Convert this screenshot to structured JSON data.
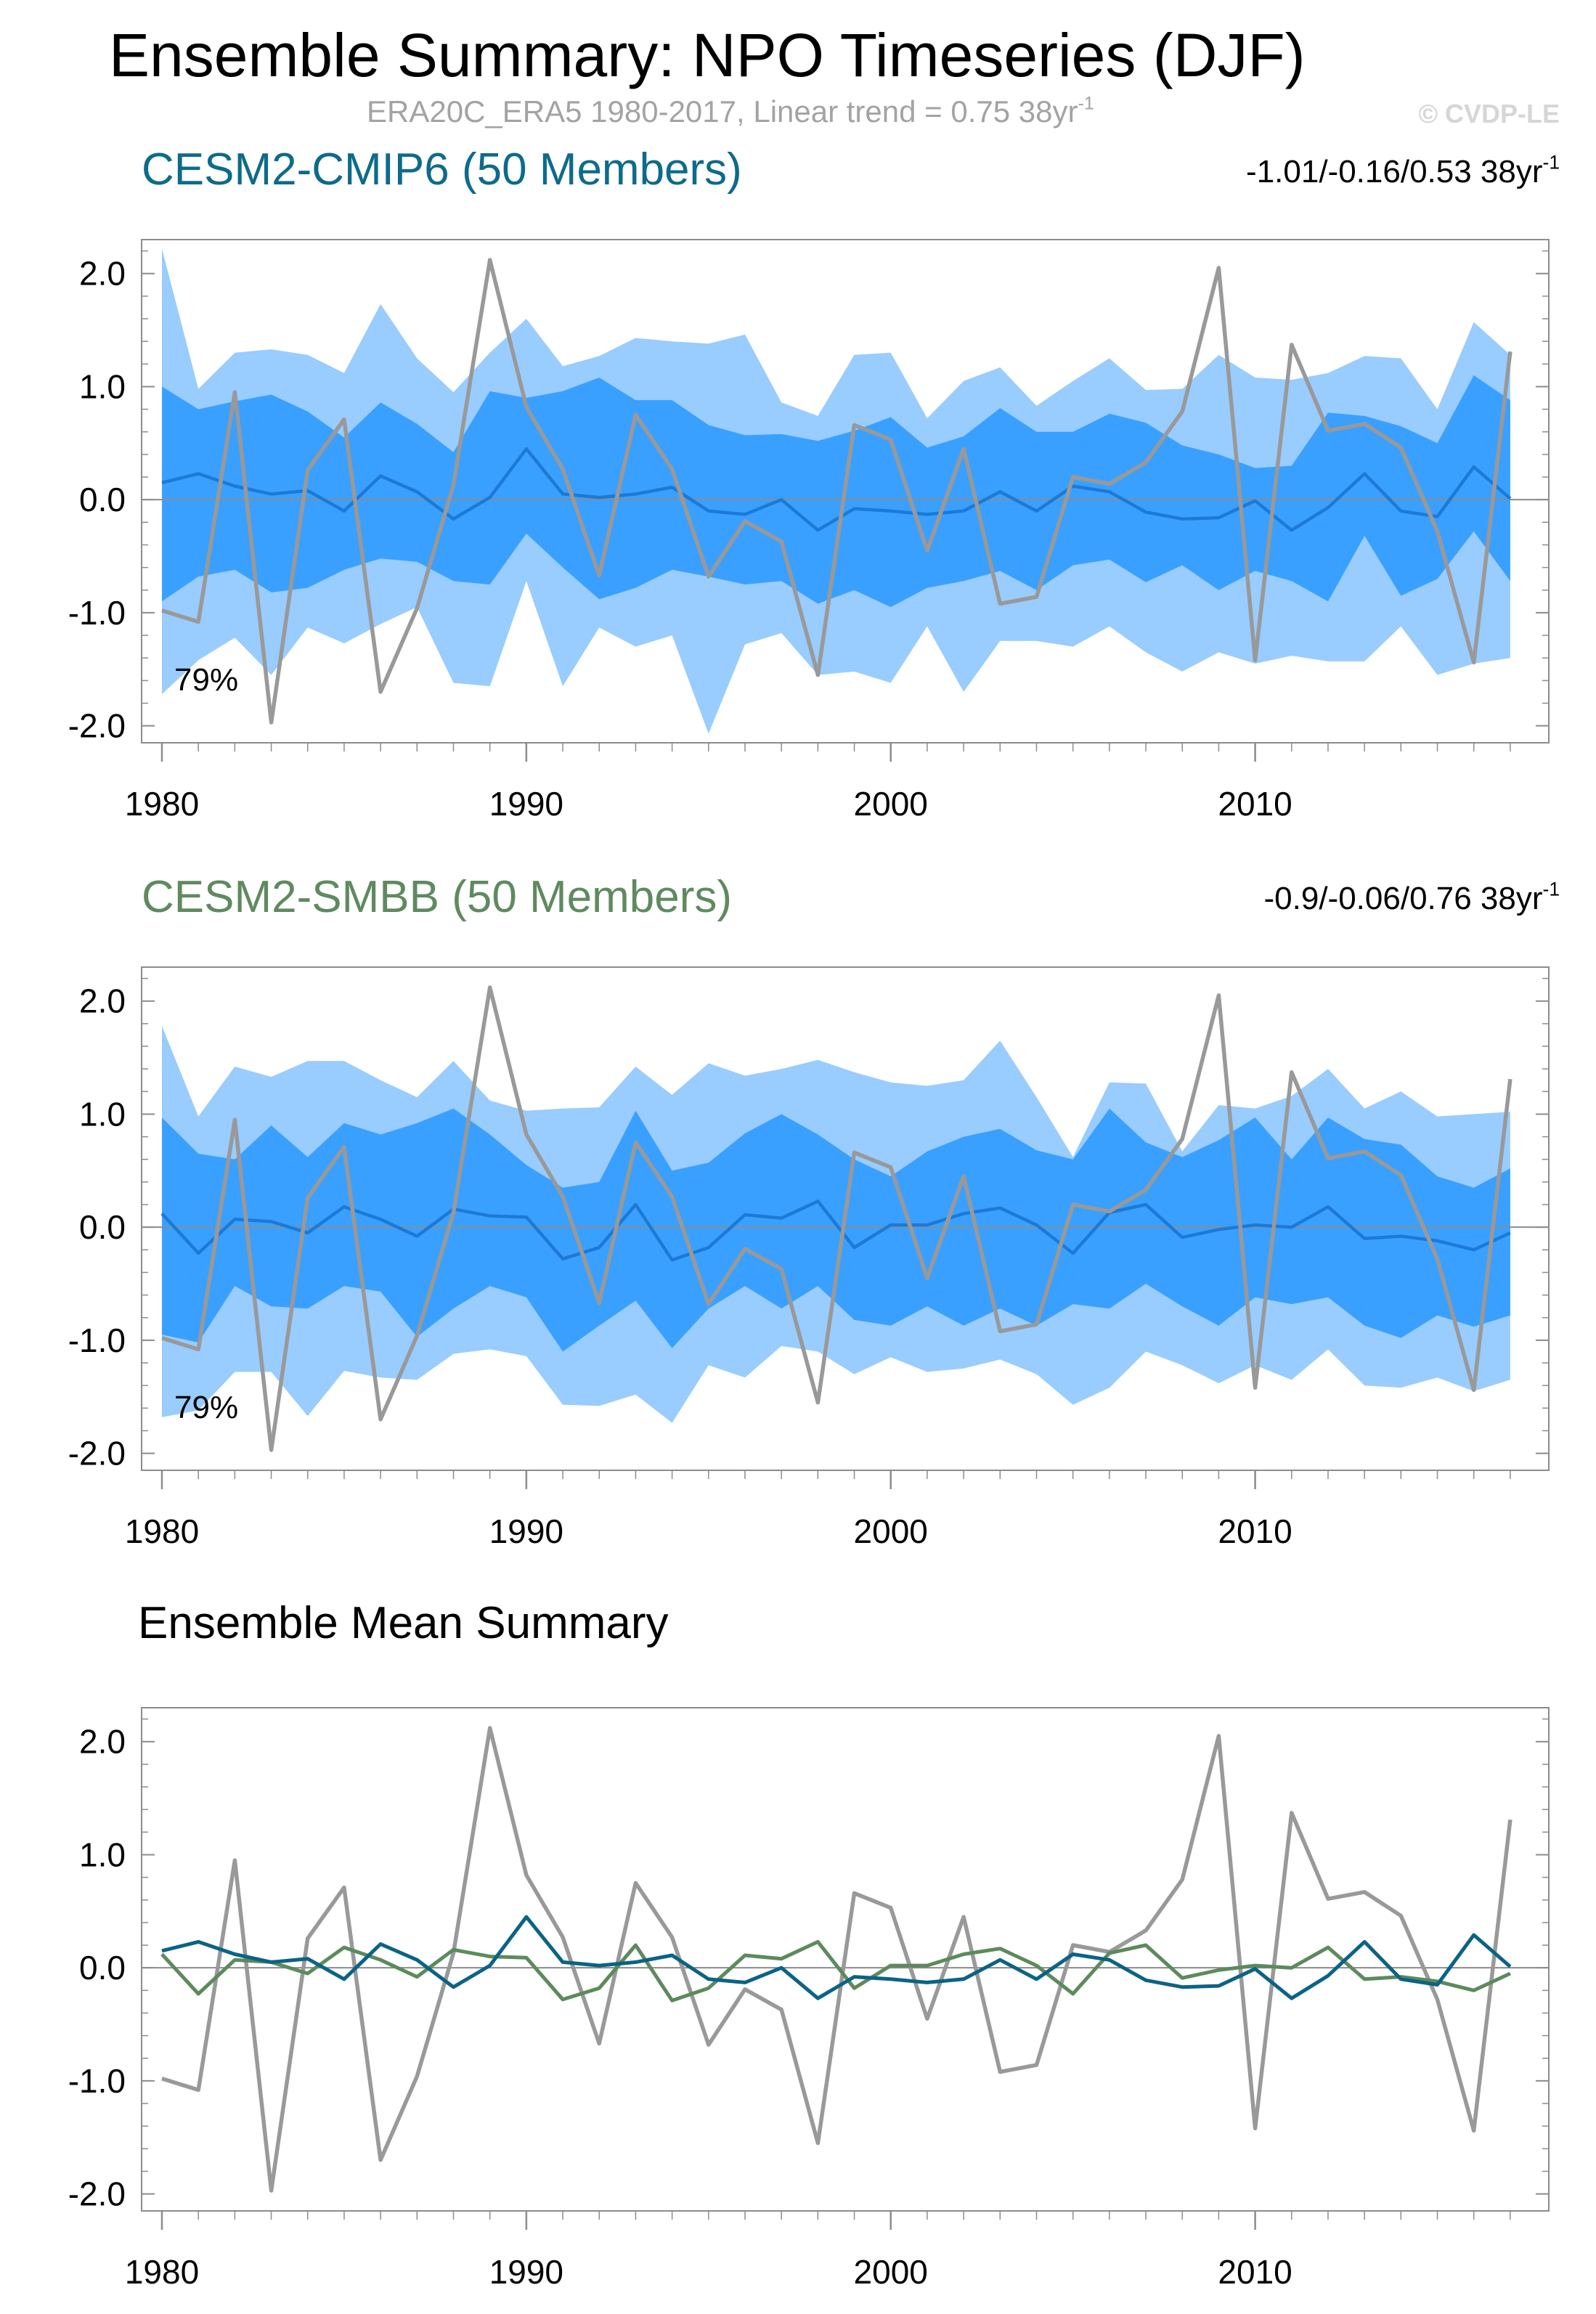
{
  "title": "Ensemble Summary: NPO Timeseries (DJF)",
  "subtitle": {
    "text": "ERA20C_ERA5 1980-2017, Linear trend = 0.75 38yr",
    "superscript": "-1"
  },
  "copyright": "© CVDP-LE",
  "colors": {
    "band_outer": "#99ccff",
    "band_inner": "#3aa0ff",
    "ens_mean_line": "#1c7ad6",
    "observation": "#999999",
    "cesm2_cmip6": "#0b6385",
    "cesm2_smbb": "#5c8a5c",
    "frame": "#8c8c8c",
    "zero_line": "#8c8c8c"
  },
  "chart_data": [
    {
      "type": "area",
      "title": "CESM2-CMIP6 (50 Members)",
      "trend_label": {
        "text": "-1.01/-0.16/0.53 38yr",
        "superscript": "-1"
      },
      "annotation": "79%",
      "x": [
        1980,
        1981,
        1982,
        1983,
        1984,
        1985,
        1986,
        1987,
        1988,
        1989,
        1990,
        1991,
        1992,
        1993,
        1994,
        1995,
        1996,
        1997,
        1998,
        1999,
        2000,
        2001,
        2002,
        2003,
        2004,
        2005,
        2006,
        2007,
        2008,
        2009,
        2010,
        2011,
        2012,
        2013,
        2014,
        2015,
        2016,
        2017
      ],
      "xticks": [
        1980,
        1990,
        2000,
        2010
      ],
      "xticklabels": [
        "1980",
        "1990",
        "2000",
        "2010"
      ],
      "yticks": [
        2.0,
        1.0,
        0.0,
        -1.0,
        -2.0
      ],
      "yticklabels": [
        "2.0",
        "1.0",
        "0.0",
        "-1.0",
        "-2.0"
      ],
      "xlim": [
        1980,
        2017.5
      ],
      "ylim": [
        -2.15,
        2.3
      ],
      "series": [
        {
          "name": "outer_band_upper",
          "values": [
            2.22,
            0.98,
            1.3,
            1.33,
            1.28,
            1.12,
            1.73,
            1.25,
            0.95,
            1.3,
            1.6,
            1.18,
            1.27,
            1.43,
            1.4,
            1.38,
            1.46,
            0.86,
            0.74,
            1.28,
            1.3,
            0.72,
            1.05,
            1.17,
            0.83,
            1.05,
            1.25,
            0.97,
            0.98,
            1.28,
            1.08,
            1.06,
            1.12,
            1.27,
            1.25,
            0.8,
            1.57,
            1.28
          ]
        },
        {
          "name": "outer_band_lower",
          "values": [
            -1.72,
            -1.42,
            -1.22,
            -1.55,
            -1.13,
            -1.27,
            -1.1,
            -0.95,
            -1.62,
            -1.65,
            -0.72,
            -1.65,
            -1.13,
            -1.3,
            -1.2,
            -2.07,
            -1.28,
            -1.18,
            -1.55,
            -1.52,
            -1.62,
            -1.12,
            -1.7,
            -1.25,
            -1.25,
            -1.3,
            -1.12,
            -1.35,
            -1.52,
            -1.35,
            -1.45,
            -1.38,
            -1.43,
            -1.43,
            -1.12,
            -1.55,
            -1.45,
            -1.4
          ]
        },
        {
          "name": "inner_band_upper",
          "values": [
            1.0,
            0.8,
            0.87,
            0.93,
            0.78,
            0.55,
            0.86,
            0.67,
            0.42,
            0.96,
            0.9,
            0.96,
            1.08,
            0.88,
            0.88,
            0.66,
            0.57,
            0.58,
            0.52,
            0.61,
            0.73,
            0.46,
            0.56,
            0.81,
            0.6,
            0.6,
            0.76,
            0.68,
            0.48,
            0.4,
            0.28,
            0.3,
            0.77,
            0.74,
            0.65,
            0.5,
            1.1,
            0.88
          ]
        },
        {
          "name": "inner_band_lower",
          "values": [
            -0.9,
            -0.68,
            -0.62,
            -0.82,
            -0.78,
            -0.62,
            -0.52,
            -0.55,
            -0.72,
            -0.75,
            -0.3,
            -0.6,
            -0.88,
            -0.78,
            -0.62,
            -0.68,
            -0.75,
            -0.72,
            -0.92,
            -0.8,
            -0.95,
            -0.78,
            -0.72,
            -0.63,
            -0.8,
            -0.58,
            -0.53,
            -0.73,
            -0.58,
            -0.8,
            -0.63,
            -0.72,
            -0.9,
            -0.32,
            -0.85,
            -0.7,
            -0.28,
            -0.72
          ]
        },
        {
          "name": "ensemble_mean",
          "values": [
            0.15,
            0.23,
            0.12,
            0.05,
            0.08,
            -0.1,
            0.21,
            0.07,
            -0.17,
            0.02,
            0.45,
            0.05,
            0.02,
            0.05,
            0.11,
            -0.1,
            -0.13,
            0.0,
            -0.27,
            -0.08,
            -0.1,
            -0.13,
            -0.1,
            0.07,
            -0.1,
            0.12,
            0.07,
            -0.11,
            -0.17,
            -0.16,
            -0.01,
            -0.27,
            -0.07,
            0.23,
            -0.1,
            -0.15,
            0.29,
            0.01
          ]
        },
        {
          "name": "ERA20C_ERA5",
          "values": [
            -0.98,
            -1.08,
            0.95,
            -1.97,
            0.26,
            0.71,
            -1.7,
            -0.96,
            0.13,
            2.12,
            0.82,
            0.27,
            -0.67,
            0.75,
            0.27,
            -0.68,
            -0.19,
            -0.37,
            -1.55,
            0.66,
            0.53,
            -0.45,
            0.45,
            -0.92,
            -0.86,
            0.2,
            0.14,
            0.33,
            0.78,
            2.05,
            -1.42,
            1.37,
            0.61,
            0.67,
            0.46,
            -0.28,
            -1.44,
            1.31
          ]
        }
      ]
    },
    {
      "type": "area",
      "title": "CESM2-SMBB (50 Members)",
      "trend_label": {
        "text": "-0.9/-0.06/0.76 38yr",
        "superscript": "-1"
      },
      "annotation": "79%",
      "x": [
        1980,
        1981,
        1982,
        1983,
        1984,
        1985,
        1986,
        1987,
        1988,
        1989,
        1990,
        1991,
        1992,
        1993,
        1994,
        1995,
        1996,
        1997,
        1998,
        1999,
        2000,
        2001,
        2002,
        2003,
        2004,
        2005,
        2006,
        2007,
        2008,
        2009,
        2010,
        2011,
        2012,
        2013,
        2014,
        2015,
        2016,
        2017
      ],
      "xticks": [
        1980,
        1990,
        2000,
        2010
      ],
      "xticklabels": [
        "1980",
        "1990",
        "2000",
        "2010"
      ],
      "yticks": [
        2.0,
        1.0,
        0.0,
        -1.0,
        -2.0
      ],
      "yticklabels": [
        "2.0",
        "1.0",
        "0.0",
        "-1.0",
        "-2.0"
      ],
      "xlim": [
        1980,
        2017.5
      ],
      "ylim": [
        -2.15,
        2.3
      ],
      "series": [
        {
          "name": "outer_band_upper",
          "values": [
            1.78,
            0.98,
            1.42,
            1.33,
            1.47,
            1.47,
            1.3,
            1.15,
            1.47,
            1.12,
            1.03,
            1.05,
            1.06,
            1.42,
            1.17,
            1.45,
            1.34,
            1.4,
            1.48,
            1.37,
            1.28,
            1.25,
            1.3,
            1.65,
            1.15,
            0.62,
            1.28,
            1.27,
            0.67,
            1.08,
            1.05,
            1.16,
            1.4,
            1.05,
            1.2,
            0.98,
            1.0,
            1.02
          ]
        },
        {
          "name": "outer_band_lower",
          "values": [
            -1.68,
            -1.62,
            -1.28,
            -1.28,
            -1.67,
            -1.27,
            -1.33,
            -1.35,
            -1.12,
            -1.08,
            -1.14,
            -1.57,
            -1.58,
            -1.48,
            -1.73,
            -1.22,
            -1.33,
            -1.05,
            -1.1,
            -1.3,
            -1.15,
            -1.28,
            -1.25,
            -1.17,
            -1.3,
            -1.57,
            -1.42,
            -1.1,
            -1.22,
            -1.38,
            -1.22,
            -1.35,
            -1.08,
            -1.4,
            -1.42,
            -1.33,
            -1.45,
            -1.35
          ]
        },
        {
          "name": "inner_band_upper",
          "values": [
            0.97,
            0.65,
            0.6,
            0.9,
            0.62,
            0.92,
            0.82,
            0.92,
            1.05,
            0.82,
            0.55,
            0.35,
            0.4,
            1.03,
            0.5,
            0.57,
            0.83,
            1.0,
            0.82,
            0.6,
            0.45,
            0.67,
            0.8,
            0.87,
            0.68,
            0.6,
            1.05,
            0.75,
            0.62,
            0.77,
            0.97,
            0.6,
            0.97,
            0.78,
            0.73,
            0.45,
            0.35,
            0.52
          ]
        },
        {
          "name": "inner_band_lower",
          "values": [
            -0.95,
            -1.02,
            -0.52,
            -0.7,
            -0.72,
            -0.52,
            -0.57,
            -0.97,
            -0.72,
            -0.52,
            -0.62,
            -1.1,
            -0.87,
            -0.65,
            -1.07,
            -0.72,
            -0.52,
            -0.72,
            -0.52,
            -0.82,
            -0.87,
            -0.7,
            -0.87,
            -0.72,
            -0.87,
            -0.68,
            -0.72,
            -0.5,
            -0.7,
            -0.87,
            -0.62,
            -0.68,
            -0.62,
            -0.87,
            -0.98,
            -0.78,
            -0.88,
            -0.78
          ]
        },
        {
          "name": "ensemble_mean",
          "values": [
            0.12,
            -0.23,
            0.07,
            0.05,
            -0.05,
            0.18,
            0.07,
            -0.08,
            0.16,
            0.1,
            0.09,
            -0.28,
            -0.18,
            0.2,
            -0.29,
            -0.18,
            0.11,
            0.08,
            0.23,
            -0.18,
            0.02,
            0.02,
            0.12,
            0.17,
            0.02,
            -0.23,
            0.13,
            0.2,
            -0.09,
            -0.02,
            0.02,
            0.0,
            0.18,
            -0.1,
            -0.08,
            -0.12,
            -0.2,
            -0.05
          ]
        },
        {
          "name": "ERA20C_ERA5",
          "values": [
            -0.98,
            -1.08,
            0.95,
            -1.97,
            0.26,
            0.71,
            -1.7,
            -0.96,
            0.13,
            2.12,
            0.82,
            0.27,
            -0.67,
            0.75,
            0.27,
            -0.68,
            -0.19,
            -0.37,
            -1.55,
            0.66,
            0.53,
            -0.45,
            0.45,
            -0.92,
            -0.86,
            0.2,
            0.14,
            0.33,
            0.78,
            2.05,
            -1.42,
            1.37,
            0.61,
            0.67,
            0.46,
            -0.28,
            -1.44,
            1.31
          ]
        }
      ]
    },
    {
      "type": "line",
      "title": "Ensemble Mean Summary",
      "x": [
        1980,
        1981,
        1982,
        1983,
        1984,
        1985,
        1986,
        1987,
        1988,
        1989,
        1990,
        1991,
        1992,
        1993,
        1994,
        1995,
        1996,
        1997,
        1998,
        1999,
        2000,
        2001,
        2002,
        2003,
        2004,
        2005,
        2006,
        2007,
        2008,
        2009,
        2010,
        2011,
        2012,
        2013,
        2014,
        2015,
        2016,
        2017
      ],
      "xticks": [
        1980,
        1990,
        2000,
        2010
      ],
      "xticklabels": [
        "1980",
        "1990",
        "2000",
        "2010"
      ],
      "yticks": [
        2.0,
        1.0,
        0.0,
        -1.0,
        -2.0
      ],
      "yticklabels": [
        "2.0",
        "1.0",
        "0.0",
        "-1.0",
        "-2.0"
      ],
      "xlim": [
        1980,
        2017.5
      ],
      "ylim": [
        -2.15,
        2.3
      ],
      "series": [
        {
          "name": "ERA20C_ERA5",
          "values": [
            -0.98,
            -1.08,
            0.95,
            -1.97,
            0.26,
            0.71,
            -1.7,
            -0.96,
            0.13,
            2.12,
            0.82,
            0.27,
            -0.67,
            0.75,
            0.27,
            -0.68,
            -0.19,
            -0.37,
            -1.55,
            0.66,
            0.53,
            -0.45,
            0.45,
            -0.92,
            -0.86,
            0.2,
            0.14,
            0.33,
            0.78,
            2.05,
            -1.42,
            1.37,
            0.61,
            0.67,
            0.46,
            -0.28,
            -1.44,
            1.31
          ]
        },
        {
          "name": "CESM2-SMBB",
          "values": [
            0.12,
            -0.23,
            0.07,
            0.05,
            -0.05,
            0.18,
            0.07,
            -0.08,
            0.16,
            0.1,
            0.09,
            -0.28,
            -0.18,
            0.2,
            -0.29,
            -0.18,
            0.11,
            0.08,
            0.23,
            -0.18,
            0.02,
            0.02,
            0.12,
            0.17,
            0.02,
            -0.23,
            0.13,
            0.2,
            -0.09,
            -0.02,
            0.02,
            0.0,
            0.18,
            -0.1,
            -0.08,
            -0.12,
            -0.2,
            -0.05
          ]
        },
        {
          "name": "CESM2-CMIP6",
          "values": [
            0.15,
            0.23,
            0.12,
            0.05,
            0.08,
            -0.1,
            0.21,
            0.07,
            -0.17,
            0.02,
            0.45,
            0.05,
            0.02,
            0.05,
            0.11,
            -0.1,
            -0.13,
            0.0,
            -0.27,
            -0.08,
            -0.1,
            -0.13,
            -0.1,
            0.07,
            -0.1,
            0.12,
            0.07,
            -0.11,
            -0.17,
            -0.16,
            -0.01,
            -0.27,
            -0.07,
            0.23,
            -0.1,
            -0.15,
            0.29,
            0.01
          ]
        }
      ]
    }
  ]
}
